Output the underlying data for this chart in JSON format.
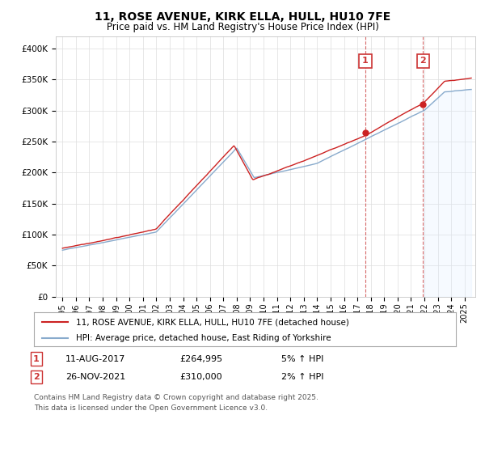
{
  "title": "11, ROSE AVENUE, KIRK ELLA, HULL, HU10 7FE",
  "subtitle": "Price paid vs. HM Land Registry's House Price Index (HPI)",
  "legend_line1": "11, ROSE AVENUE, KIRK ELLA, HULL, HU10 7FE (detached house)",
  "legend_line2": "HPI: Average price, detached house, East Riding of Yorkshire",
  "annotation1_label": "1",
  "annotation1_date": "11-AUG-2017",
  "annotation1_price": "£264,995",
  "annotation1_hpi": "5% ↑ HPI",
  "annotation1_year": 2017.6,
  "annotation1_value": 264995,
  "annotation2_label": "2",
  "annotation2_date": "26-NOV-2021",
  "annotation2_price": "£310,000",
  "annotation2_hpi": "2% ↑ HPI",
  "annotation2_year": 2021.9,
  "annotation2_value": 310000,
  "footer": "Contains HM Land Registry data © Crown copyright and database right 2025.\nThis data is licensed under the Open Government Licence v3.0.",
  "red_color": "#cc2222",
  "blue_color": "#88aacc",
  "blue_fill_color": "#ddeeff",
  "grid_color": "#dddddd",
  "bg_color": "#ffffff",
  "annotation_box_color": "#cc3333",
  "ylim": [
    0,
    420000
  ],
  "yticks": [
    0,
    50000,
    100000,
    150000,
    200000,
    250000,
    300000,
    350000,
    400000
  ],
  "xlim_start": 1994.5,
  "xlim_end": 2025.8
}
